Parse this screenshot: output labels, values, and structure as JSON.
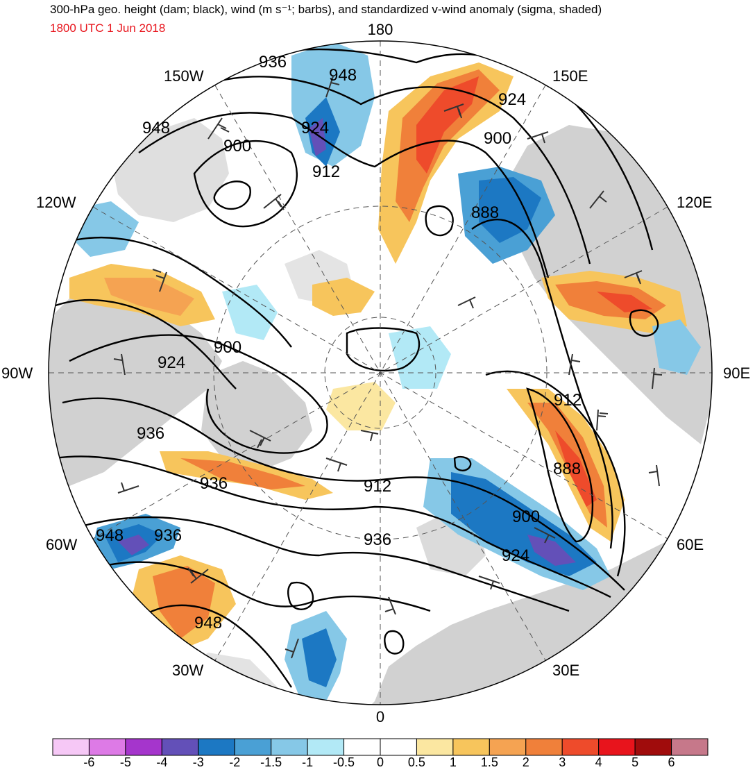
{
  "header": {
    "title": "300-hPa geo. height (dam; black), wind (m s⁻¹; barbs), and standardized v-wind anomaly (sigma, shaded)",
    "valid_time": "1800 UTC 1 Jun 2018"
  },
  "map": {
    "projection": "north-polar-stereographic",
    "longitude_labels": [
      "180",
      "150E",
      "120E",
      "90E",
      "60E",
      "30E",
      "0",
      "30W",
      "60W",
      "90W",
      "120W",
      "150W"
    ],
    "contour_labels": [
      "936",
      "948",
      "924",
      "900",
      "912",
      "948",
      "924",
      "900",
      "888",
      "912",
      "888",
      "900",
      "924",
      "936",
      "912",
      "924",
      "900",
      "936",
      "936",
      "948",
      "936",
      "948"
    ]
  },
  "colorbar": {
    "labels": [
      "-6",
      "-5",
      "-4",
      "-3",
      "-2",
      "-1.5",
      "-1",
      "-0.5",
      "0",
      "0.5",
      "1",
      "1.5",
      "2",
      "3",
      "4",
      "5",
      "6"
    ],
    "colors": [
      "#f6c8f6",
      "#dd7ae6",
      "#a535cc",
      "#6350b8",
      "#1c78c3",
      "#4aa0d5",
      "#86c8e7",
      "#b2e9f6",
      "#ffffff",
      "#ffffff",
      "#fbe7a1",
      "#f7c55c",
      "#f5a352",
      "#f0803a",
      "#ee4b2b",
      "#e8141c",
      "#a00c0c",
      "#c6788a"
    ]
  }
}
